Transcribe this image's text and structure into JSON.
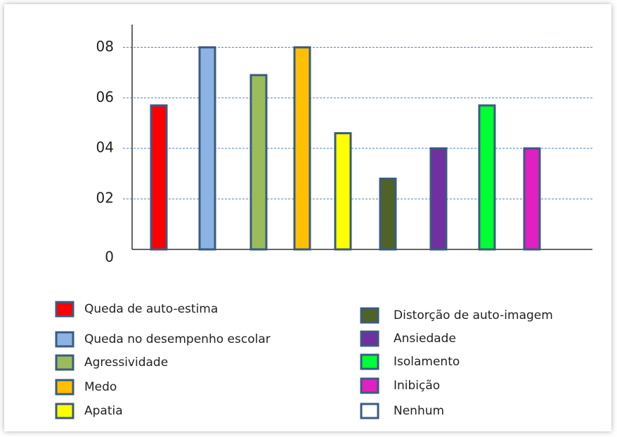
{
  "chart_data": {
    "type": "bar",
    "categories": [
      "Queda de auto-estima",
      "Queda no desempenho escolar",
      "Agressividade",
      "Medo",
      "Apatia",
      "Distorção de auto-imagem",
      "Ansiedade",
      "Isolamento",
      "Inibição",
      "Nenhum"
    ],
    "values": [
      5.7,
      8,
      6.9,
      8,
      4.6,
      2.8,
      4,
      5.7,
      4,
      0
    ],
    "colors": [
      "#ff0000",
      "#8db3e2",
      "#9bbb59",
      "#ffc000",
      "#ffff00",
      "#4f6228",
      "#7030a0",
      "#00ff33",
      "#e020c0",
      "#ffffff"
    ],
    "ylim": [
      0,
      8.9
    ],
    "yticks": [
      {
        "value": 0,
        "label": "0"
      },
      {
        "value": 2,
        "label": "02"
      },
      {
        "value": 4,
        "label": "04"
      },
      {
        "value": 6,
        "label": "06"
      },
      {
        "value": 8,
        "label": "08"
      }
    ],
    "grid": true
  }
}
